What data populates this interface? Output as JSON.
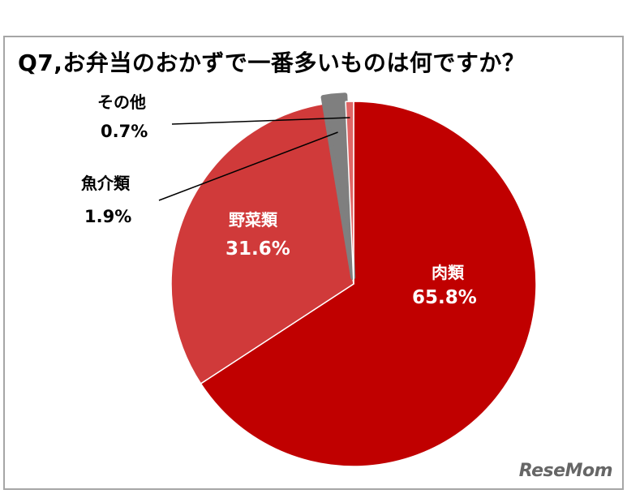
{
  "chart_data": {
    "type": "pie",
    "title": "Q7,お弁当のおかずで一番多いものは何ですか？",
    "slices": [
      {
        "name": "肉類",
        "value": 65.8,
        "label": "65.8%",
        "color": "#c00000"
      },
      {
        "name": "野菜類",
        "value": 31.6,
        "label": "31.6%",
        "color": "#d03a3a"
      },
      {
        "name": "魚介類",
        "value": 1.9,
        "label": "1.9%",
        "color": "#7f7f7f"
      },
      {
        "name": "その他",
        "value": 0.7,
        "label": "0.7%",
        "color": "#e06666"
      }
    ]
  },
  "brand": {
    "logo_text": "ReseMom"
  }
}
